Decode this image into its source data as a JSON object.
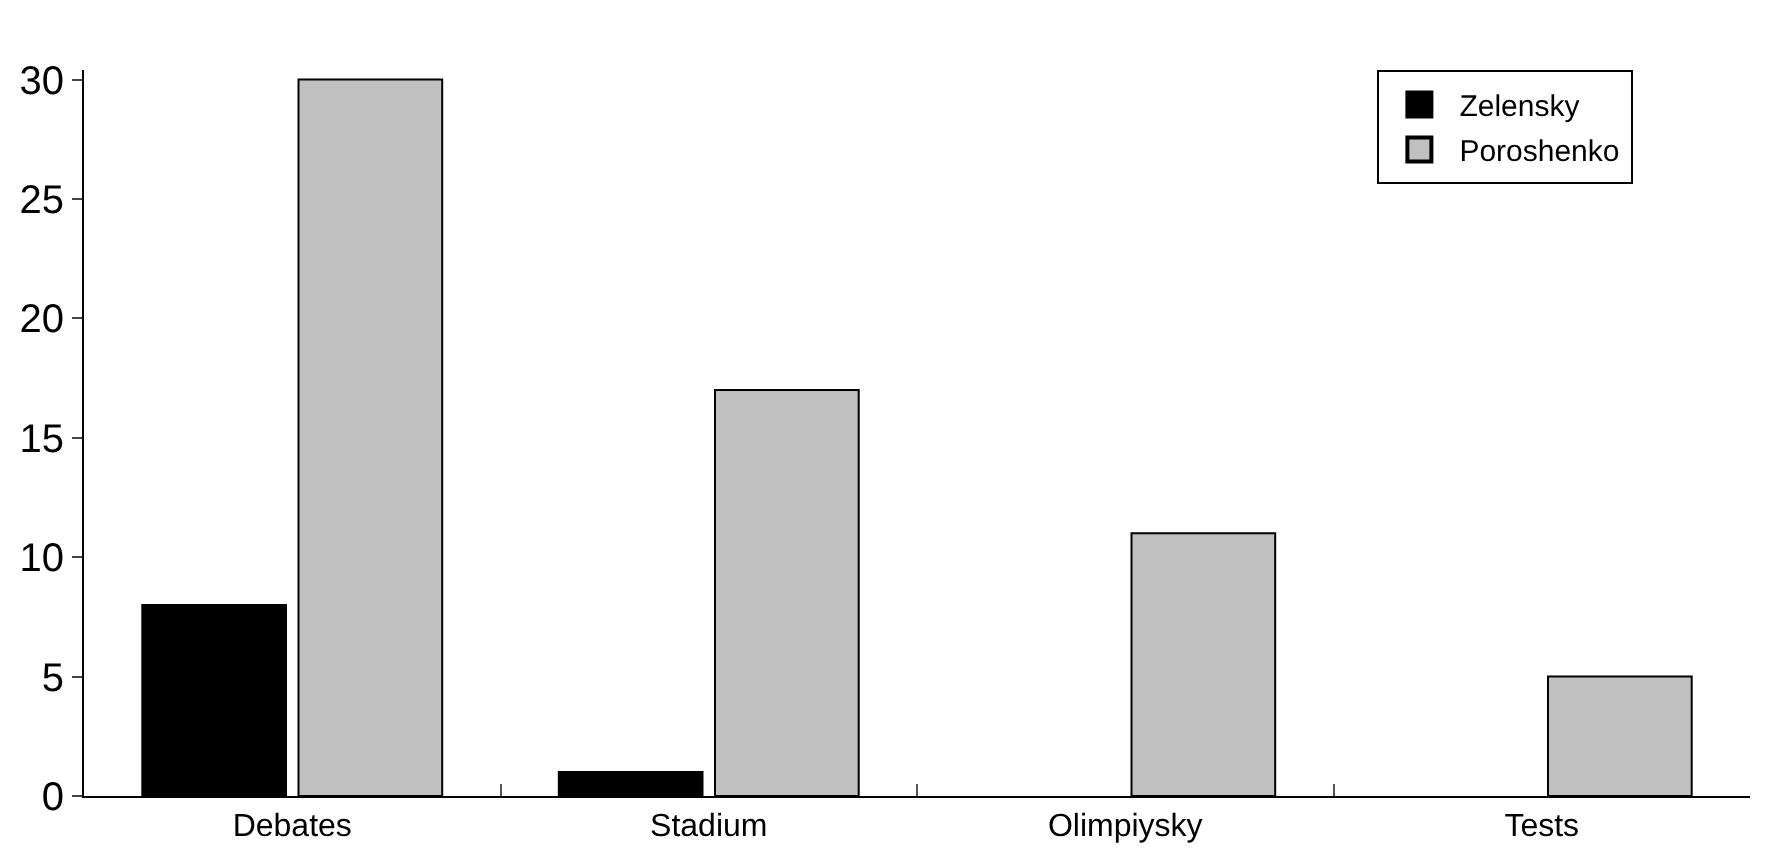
{
  "chart_data": {
    "type": "bar",
    "categories": [
      "Debates",
      "Stadium",
      "Olimpiysky",
      "Tests"
    ],
    "series": [
      {
        "name": "Zelensky",
        "color": "#000000",
        "values": [
          8,
          1,
          0,
          0
        ]
      },
      {
        "name": "Poroshenko",
        "color": "#c0c0c0",
        "values": [
          30,
          17,
          11,
          5
        ]
      }
    ],
    "ylim": [
      0,
      30.4
    ],
    "yticks": [
      0,
      5,
      10,
      15,
      20,
      25,
      30
    ],
    "legend": "top right"
  }
}
